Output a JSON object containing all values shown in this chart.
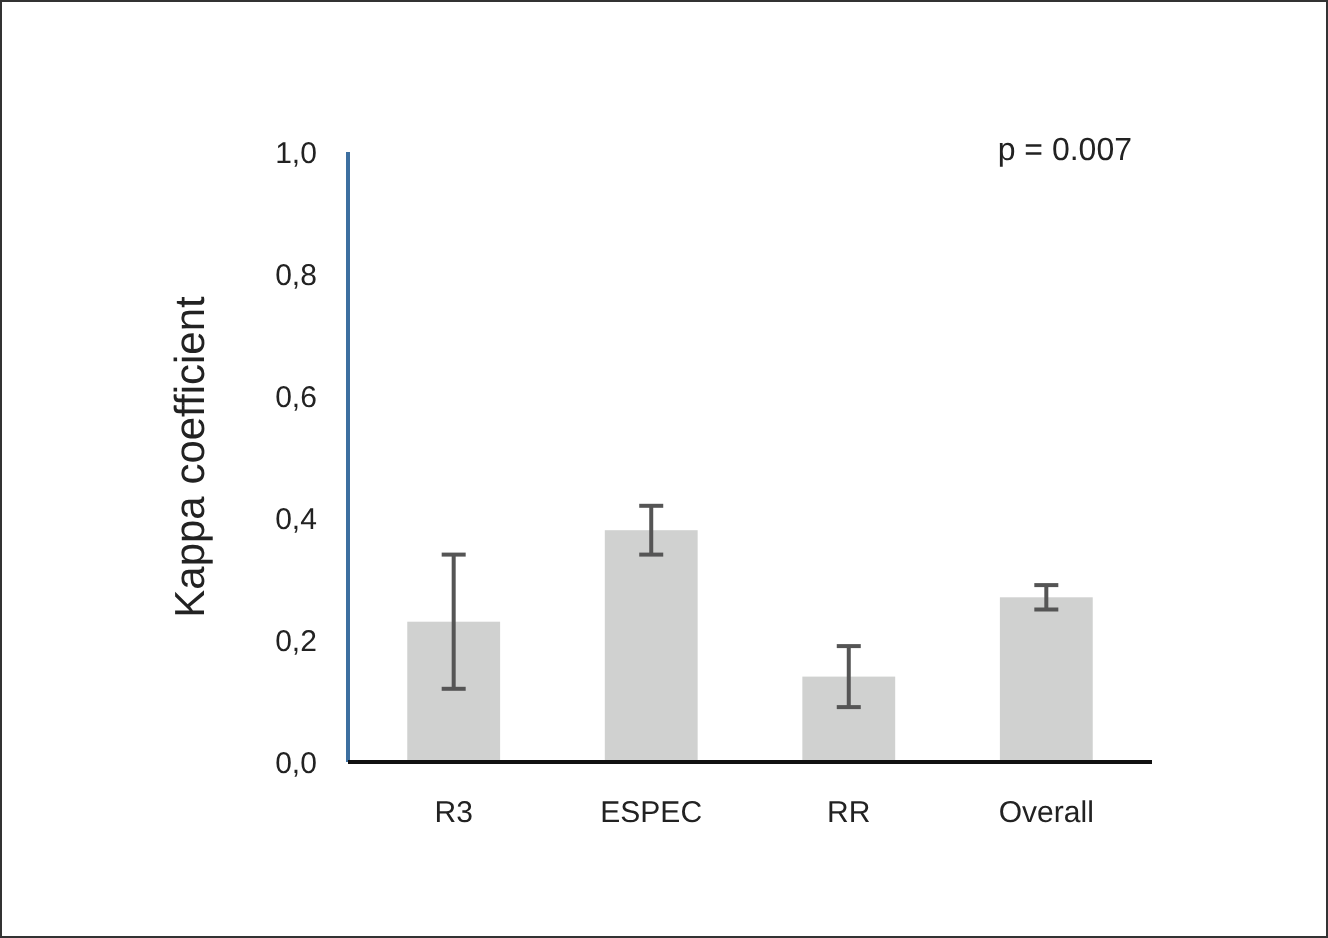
{
  "chart_data": {
    "type": "bar",
    "ylabel": "Kappa coefficient",
    "categories": [
      "R3",
      "ESPEC",
      "RR",
      "Overall"
    ],
    "values": [
      0.23,
      0.38,
      0.14,
      0.27
    ],
    "color": "#d0d1d0",
    "errors": [
      [
        0.12,
        0.34
      ],
      [
        0.34,
        0.42
      ],
      [
        0.09,
        0.19
      ],
      [
        0.25,
        0.29
      ]
    ],
    "ylim": [
      0,
      1
    ],
    "yticks": [
      {
        "value": 0,
        "label": "0,0"
      },
      {
        "value": 0.2,
        "label": "0,2"
      },
      {
        "value": 0.4,
        "label": "0,4"
      },
      {
        "value": 0.6,
        "label": "0,6"
      },
      {
        "value": 0.8,
        "label": "0,8"
      },
      {
        "value": 1,
        "label": "1,0"
      }
    ],
    "annotations": [
      "p = 0.007"
    ],
    "grid": false
  }
}
